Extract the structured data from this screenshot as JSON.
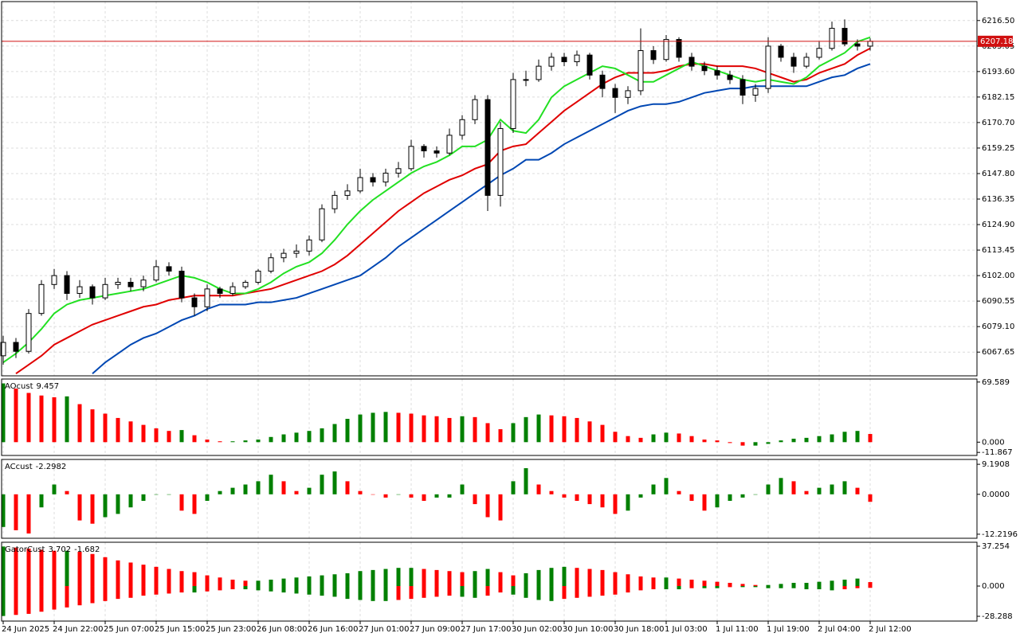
{
  "chart_data": [
    {
      "type": "candlestick",
      "categories": [
        "24 Jun 2025",
        null,
        null,
        null,
        "24 Jun 22:00",
        null,
        null,
        null,
        "25 Jun 07:00",
        null,
        null,
        null,
        "25 Jun 15:00",
        null,
        null,
        null,
        "25 Jun 23:00",
        null,
        null,
        null,
        "26 Jun 08:00",
        null,
        null,
        null,
        "26 Jun 16:00",
        null,
        null,
        null,
        "27 Jun 01:00",
        null,
        null,
        null,
        "27 Jun 09:00",
        null,
        null,
        null,
        "27 Jun 17:00",
        null,
        null,
        null,
        "30 Jun 02:00",
        null,
        null,
        null,
        "30 Jun 10:00",
        null,
        null,
        null,
        "30 Jun 18:00",
        null,
        null,
        null,
        "1 Jul 03:00",
        null,
        null,
        null,
        "1 Jul 11:00",
        null,
        null,
        null,
        "1 Jul 19:00",
        null,
        null,
        null,
        "2 Jul 04:00",
        null,
        null,
        null,
        "2 Jul 12:00"
      ],
      "open": [
        6066,
        6072,
        6068,
        6085,
        6098,
        6102,
        6094,
        6097,
        6092,
        6098,
        6099,
        6097,
        6100,
        6106,
        6104,
        6092,
        6088,
        6096,
        6094,
        6097,
        6099,
        6104,
        6110,
        6112,
        6113,
        6118,
        6132,
        6138,
        6140,
        6146,
        6144,
        6148,
        6150,
        6160,
        6158,
        6157,
        6165,
        6172,
        6181,
        6138,
        6168,
        6190,
        6190,
        6196,
        6200,
        6198,
        6201,
        6192,
        6186,
        6182,
        6185,
        6203,
        6199,
        6208,
        6200,
        6196,
        6194,
        6192,
        6190,
        6183,
        6186,
        6205,
        6200,
        6196,
        6200,
        6204,
        6213,
        6206,
        6205
      ],
      "high": [
        6075,
        6074,
        6087,
        6100,
        6105,
        6104,
        6100,
        6098,
        6101,
        6101,
        6101,
        6102,
        6109,
        6108,
        6106,
        6094,
        6098,
        6097,
        6099,
        6100,
        6105,
        6112,
        6114,
        6116,
        6120,
        6134,
        6140,
        6143,
        6150,
        6148,
        6150,
        6153,
        6163,
        6161,
        6160,
        6168,
        6174,
        6183,
        6183,
        6171,
        6193,
        6194,
        6199,
        6202,
        6202,
        6203,
        6202,
        6194,
        6188,
        6187,
        6213,
        6205,
        6210,
        6209,
        6202,
        6198,
        6196,
        6194,
        6192,
        6188,
        6209,
        6206,
        6202,
        6202,
        6207,
        6216,
        6217,
        6208,
        6208.5
      ],
      "low": [
        6062,
        6065,
        6067,
        6084,
        6096,
        6091,
        6092,
        6089,
        6091,
        6096,
        6095,
        6095,
        6099,
        6102,
        6090,
        6084,
        6086,
        6092,
        6093,
        6096,
        6098,
        6103,
        6108,
        6110,
        6111,
        6117,
        6130,
        6136,
        6139,
        6142,
        6142,
        6146,
        6149,
        6155,
        6155,
        6156,
        6163,
        6170,
        6131,
        6133,
        6166,
        6187,
        6189,
        6194,
        6196,
        6196,
        6190,
        6182,
        6175,
        6179,
        6183,
        6197,
        6198,
        6198,
        6194,
        6192,
        6190,
        6188,
        6179,
        6180,
        6184,
        6198,
        6193,
        6195,
        6199,
        6203,
        6205,
        6203,
        6203
      ],
      "close": [
        6072,
        6068,
        6085,
        6098,
        6102,
        6094,
        6097,
        6092,
        6098,
        6099,
        6097,
        6100,
        6106,
        6104,
        6092,
        6088,
        6096,
        6094,
        6097,
        6099,
        6104,
        6110,
        6112,
        6113,
        6118,
        6132,
        6138,
        6140,
        6146,
        6144,
        6148,
        6150,
        6160,
        6158,
        6157,
        6165,
        6172,
        6181,
        6138,
        6168,
        6190,
        6190,
        6196,
        6200,
        6198,
        6201,
        6192,
        6186,
        6182,
        6185,
        6203,
        6199,
        6208,
        6200,
        6196,
        6194,
        6192,
        6190,
        6183,
        6186,
        6205,
        6200,
        6196,
        6200,
        6204,
        6213,
        6206,
        6205,
        6207.18
      ],
      "up_color": "#ffffff",
      "down_color": "#000000",
      "series": [
        {
          "color": "#0047b3",
          "values": [
            null,
            null,
            null,
            null,
            null,
            null,
            null,
            6058,
            6063,
            6067,
            6071,
            6074,
            6076,
            6079,
            6082,
            6084,
            6087,
            6089,
            6089,
            6089,
            6090,
            6090,
            6091,
            6092,
            6094,
            6096,
            6098,
            6100,
            6102,
            6106,
            6110,
            6115,
            6119,
            6123,
            6127,
            6131,
            6135,
            6139,
            6143,
            6147,
            6150,
            6154,
            6154,
            6157,
            6161,
            6164,
            6167,
            6170,
            6173,
            6176,
            6178,
            6179,
            6179,
            6180,
            6182,
            6184,
            6185,
            6186,
            6186,
            6187,
            6187,
            6187,
            6187,
            6187,
            6189,
            6191,
            6192,
            6195,
            6197
          ]
        },
        {
          "color": "#e00000",
          "values": [
            null,
            6058,
            6062,
            6066,
            6071,
            6074,
            6077,
            6080,
            6082,
            6084,
            6086,
            6088,
            6089,
            6091,
            6092,
            6093,
            6093,
            6093,
            6093,
            6094,
            6095,
            6096,
            6098,
            6100,
            6102,
            6104,
            6107,
            6111,
            6116,
            6121,
            6126,
            6131,
            6135,
            6139,
            6142,
            6145,
            6147,
            6150,
            6152,
            6158,
            6160,
            6161,
            6166,
            6171,
            6176,
            6180,
            6184,
            6188,
            6191,
            6193,
            6193,
            6193,
            6194,
            6196,
            6197,
            6197,
            6196,
            6196,
            6196,
            6195,
            6193,
            6191,
            6189,
            6190,
            6193,
            6195,
            6197,
            6201,
            6204
          ]
        },
        {
          "color": "#22e022",
          "values": [
            6063,
            6067,
            6072,
            6078,
            6085,
            6089,
            6091,
            6092,
            6093,
            6094,
            6095,
            6096,
            6098,
            6100,
            6102,
            6101,
            6099,
            6096,
            6094,
            6094,
            6096,
            6099,
            6103,
            6106,
            6108,
            6112,
            6118,
            6125,
            6131,
            6136,
            6140,
            6144,
            6148,
            6151,
            6153,
            6156,
            6160,
            6160,
            6163,
            6172,
            6167,
            6166,
            6172,
            6182,
            6187,
            6190,
            6193,
            6196,
            6195,
            6192,
            6189,
            6189,
            6192,
            6195,
            6198,
            6196,
            6194,
            6192,
            6190,
            6189,
            6190,
            6189,
            6188,
            6191,
            6196,
            6199,
            6202,
            6207,
            6209
          ]
        }
      ],
      "ylim": [
        6057.0,
        6225.0
      ],
      "yticks": [
        {
          "value": 6216.5,
          "label": "6216.50"
        },
        {
          "value": 6205.05,
          "label": "6205.05"
        },
        {
          "value": 6193.6,
          "label": "6193.60"
        },
        {
          "value": 6182.15,
          "label": "6182.15"
        },
        {
          "value": 6170.7,
          "label": "6170.70"
        },
        {
          "value": 6159.25,
          "label": "6159.25"
        },
        {
          "value": 6147.8,
          "label": "6147.80"
        },
        {
          "value": 6136.35,
          "label": "6136.35"
        },
        {
          "value": 6124.9,
          "label": "6124.90"
        },
        {
          "value": 6113.45,
          "label": "6113.45"
        },
        {
          "value": 6102.0,
          "label": "6102.00"
        },
        {
          "value": 6090.55,
          "label": "6090.55"
        },
        {
          "value": 6079.1,
          "label": "6079.10"
        },
        {
          "value": 6067.65,
          "label": "6067.65"
        }
      ],
      "last_price": 6207.18,
      "last_price_color": "#d01010",
      "grid": true
    },
    {
      "type": "oscillator",
      "name": "AOcust",
      "values": [
        68,
        62,
        57,
        54,
        52,
        53,
        44,
        38,
        33,
        28,
        24,
        20,
        16,
        13,
        14,
        8,
        3,
        1,
        1,
        2,
        3,
        6,
        9,
        11,
        13,
        16,
        21,
        27,
        32,
        34,
        35,
        34,
        33,
        31,
        30,
        28,
        30,
        29,
        22,
        15,
        22,
        29,
        32,
        31,
        30,
        28,
        24,
        20,
        12,
        7,
        5,
        9,
        11,
        10,
        7,
        3,
        2,
        -1,
        -4,
        -4,
        -2,
        2,
        4,
        5,
        7,
        9,
        12,
        13,
        9.457
      ],
      "up_color": "#008000",
      "down_color": "#ff0000",
      "ylim": [
        -15.4,
        73.1
      ],
      "yticks": [
        69.589,
        {
          "value": 0,
          "label": "0.000"
        },
        -11.867
      ]
    },
    {
      "type": "oscillator",
      "name": "ACcust",
      "values": [
        -10,
        -11,
        -12,
        -4,
        3,
        1,
        -8,
        -9,
        -7,
        -6,
        -4,
        -2,
        0,
        0,
        -5,
        -6,
        -2,
        1,
        2,
        3,
        4,
        6,
        4,
        1,
        2,
        6,
        7,
        4,
        1,
        0,
        -1,
        0,
        -1,
        -2,
        -1,
        -1,
        3,
        -3,
        -7,
        -8,
        4,
        8,
        3,
        1,
        -1,
        -2,
        -3,
        -4,
        -6,
        -5,
        -1,
        3,
        5,
        1,
        -2,
        -5,
        -4,
        -2,
        -1,
        0,
        3,
        5,
        4,
        1,
        2,
        3,
        4,
        2,
        -2.2982
      ],
      "up_color": "#008000",
      "down_color": "#ff0000",
      "ylim": [
        -13.46,
        10.68
      ],
      "yticks": [
        9.1908,
        {
          "value": 0,
          "label": "0.0000"
        },
        -12.2196
      ]
    },
    {
      "type": "gator",
      "name": "GatorCust",
      "series": [
        {
          "values": [
            37,
            36,
            35,
            34,
            33,
            33,
            32,
            30,
            27,
            24,
            22,
            20,
            18,
            16,
            14,
            13,
            10,
            8,
            6,
            5,
            5,
            6,
            7,
            8,
            9,
            10,
            11,
            12,
            14,
            15,
            16,
            17,
            17,
            16,
            15,
            14,
            13,
            14,
            16,
            13,
            10,
            12,
            15,
            17,
            18,
            17,
            16,
            15,
            13,
            11,
            9,
            8,
            8,
            7,
            6,
            5,
            4,
            3,
            2,
            1,
            1,
            2,
            3,
            3,
            4,
            5,
            6,
            7,
            3.702
          ]
        },
        {
          "values": [
            -28,
            -27,
            -26,
            -24,
            -22,
            -20,
            -18,
            -16,
            -14,
            -12,
            -11,
            -9,
            -8,
            -7,
            -6,
            -6,
            -5,
            -4,
            -3,
            -3,
            -4,
            -5,
            -6,
            -7,
            -8,
            -9,
            -10,
            -12,
            -13,
            -14,
            -14,
            -13,
            -12,
            -11,
            -10,
            -9,
            -10,
            -11,
            -9,
            -6,
            -8,
            -11,
            -13,
            -14,
            -12,
            -11,
            -10,
            -9,
            -8,
            -6,
            -4,
            -3,
            -3,
            -3,
            -2,
            -2,
            -2,
            -1,
            -1,
            -1,
            -2,
            -2,
            -2,
            -3,
            -3,
            -4,
            -3,
            -2,
            -1.682
          ]
        }
      ],
      "up_color": "#008000",
      "down_color": "#ff0000",
      "ylim": [
        -32.76,
        40.98
      ],
      "yticks": [
        37.254,
        {
          "value": 0,
          "label": "0.000"
        },
        -28.288
      ]
    }
  ]
}
